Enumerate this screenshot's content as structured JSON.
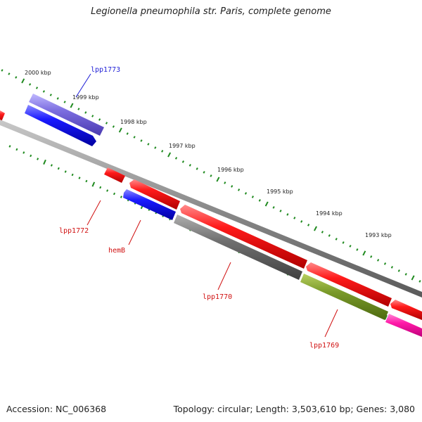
{
  "header": {
    "title": "Legionella pneumophila str. Paris, complete genome"
  },
  "footer": {
    "accession_label": "Accession: NC_006368",
    "summary_label": "Topology: circular; Length: 3,503,610 bp; Genes: 3,080"
  },
  "scale": {
    "unit": "kbp",
    "tick_labels": [
      "2000 kbp",
      "1999 kbp",
      "1998 kbp",
      "1997 kbp",
      "1996 kbp",
      "1995 kbp",
      "1994 kbp",
      "1993 kbp"
    ]
  },
  "genes": [
    {
      "name": "lpp1773",
      "strand": "forward",
      "color": "#1f1fd6"
    },
    {
      "name": "lpp1772",
      "strand": "reverse",
      "color": "#e01212"
    },
    {
      "name": "hemB",
      "strand": "reverse",
      "color": "#1f1fd6"
    },
    {
      "name": "lpp1770",
      "strand": "reverse",
      "color": "#e01212"
    },
    {
      "name": "lpp1769",
      "strand": "reverse",
      "color": "#e01212"
    }
  ],
  "colors": {
    "tick_green": "#1f8a1f",
    "backbone": "#888888",
    "label_blue": "#1f1fd6",
    "label_red": "#d01010"
  }
}
